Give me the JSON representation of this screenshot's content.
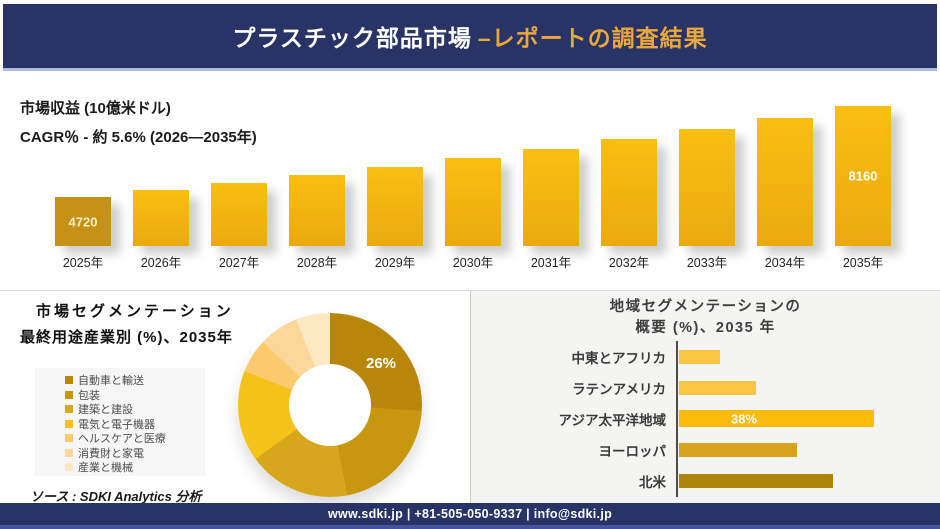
{
  "page": {
    "background": "#FFFFFF",
    "accent_navy": "#293366",
    "accent_gold": "#EAA83C",
    "panel_gray": "#F4F4F3"
  },
  "header": {
    "title_main": "プラスチック部品市場",
    "title_accent": "–レポートの調査結果"
  },
  "footer": {
    "contact": "www.sdki.jp | +81-505-050-9337 | info@sdki.jp"
  },
  "source_note": "ソース : SDKI Analytics 分析",
  "chart_data": [
    {
      "id": "market-revenue-by-year",
      "type": "bar",
      "title": "市場収益 (10億米ドル)",
      "subtitle": "CAGR％ - 約 5.6% (2026―2035年)",
      "categories": [
        "2025年",
        "2026年",
        "2027年",
        "2028年",
        "2029年",
        "2030年",
        "2031年",
        "2032年",
        "2033年",
        "2034年",
        "2035年"
      ],
      "values": [
        4720,
        4984,
        5263,
        5558,
        5869,
        6198,
        6545,
        6911,
        7298,
        7707,
        8160
      ],
      "value_note": "only 4720 and 8160 are printed on the chart; intermediate values estimated from ~5.6% CAGR growth",
      "data_labels": {
        "2025年": "4720",
        "2035年": "8160"
      },
      "label_colors": {
        "2025年": "#F8EDC3",
        "2035年": "#FFFEF6"
      },
      "first_bar_color": "#C39217",
      "bar_gradient": [
        "#FBBE12",
        "#EAAA10"
      ],
      "baseline_truncated": true,
      "grid": false,
      "legend": false
    },
    {
      "id": "end-use-segmentation",
      "type": "pie",
      "donut": true,
      "title": "市場セグメンテーション",
      "subtitle": "最終用途産業別 (%)、2035年",
      "labels": [
        "自動車と輸送",
        "包装",
        "建築と建設",
        "電気と電子機器",
        "ヘルスケアと医療",
        "消費財と家電",
        "産業と機械"
      ],
      "values": [
        26,
        21,
        18,
        16,
        6,
        7,
        6
      ],
      "colors": [
        "#B8860B",
        "#C6970F",
        "#D6A61C",
        "#F5C11B",
        "#FBCA6E",
        "#FBD89A",
        "#FCE8C2"
      ],
      "value_note": "only 26% printed on the chart; other slice values estimated from angles",
      "data_label": {
        "slice": "自動車と輸送",
        "text": "26%"
      },
      "legend_position": "left"
    },
    {
      "id": "regional-segmentation-overview",
      "type": "bar",
      "orientation": "horizontal",
      "title_line1": "地域セグメンテーションの",
      "title_line2": "概要 (%)、2035 年",
      "categories": [
        "中東とアフリカ",
        "ラテンアメリカ",
        "アジア太平洋地域",
        "ヨーロッパ",
        "北米"
      ],
      "values": [
        8,
        15,
        38,
        23,
        30
      ],
      "colors": [
        "#FBC544",
        "#FBC544",
        "#FBBB0B",
        "#D8A31C",
        "#AD8508"
      ],
      "value_note": "only 38% printed on the chart; other values estimated from bar lengths",
      "data_label": {
        "category": "アジア太平洋地域",
        "text": "38%"
      },
      "grid": false,
      "legend": false
    }
  ]
}
